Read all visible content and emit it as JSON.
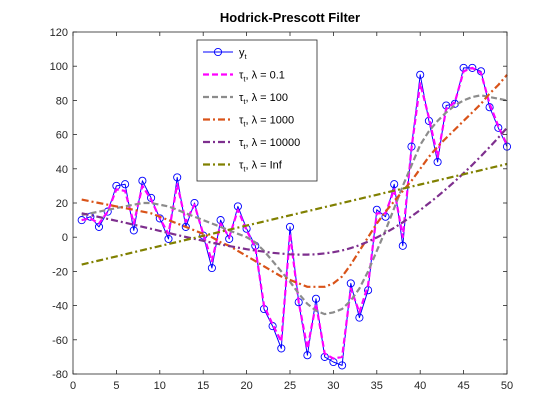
{
  "chart_data": {
    "type": "line",
    "title": "Hodrick-Prescott Filter",
    "xlabel": "",
    "ylabel": "",
    "xlim": [
      0,
      50
    ],
    "ylim": [
      -80,
      120
    ],
    "xticks": [
      0,
      5,
      10,
      15,
      20,
      25,
      30,
      35,
      40,
      45,
      50
    ],
    "yticks": [
      -80,
      -60,
      -40,
      -20,
      0,
      20,
      40,
      60,
      80,
      100,
      120
    ],
    "grid": false,
    "legend_position": "top-center",
    "x": [
      1,
      2,
      3,
      4,
      5,
      6,
      7,
      8,
      9,
      10,
      11,
      12,
      13,
      14,
      15,
      16,
      17,
      18,
      19,
      20,
      21,
      22,
      23,
      24,
      25,
      26,
      27,
      28,
      29,
      30,
      31,
      32,
      33,
      34,
      35,
      36,
      37,
      38,
      39,
      40,
      41,
      42,
      43,
      44,
      45,
      46,
      47,
      48,
      49,
      50
    ],
    "series": [
      {
        "legend": {
          "base": "y",
          "sub": "t",
          "rest": ""
        },
        "color": "#0000ff",
        "style": "solid-marker",
        "values": [
          10,
          12,
          6,
          15,
          30,
          31,
          4,
          33,
          23,
          11,
          -1,
          35,
          6,
          20,
          1,
          -18,
          10,
          -1,
          18,
          5,
          -5,
          -42,
          -52,
          -65,
          6,
          -38,
          -69,
          -36,
          -70,
          -73,
          -75,
          -27,
          -47,
          -31,
          16,
          12,
          31,
          -5,
          53,
          95,
          68,
          44,
          77,
          78,
          99,
          99,
          97,
          76,
          64,
          53
        ]
      },
      {
        "legend": {
          "base": "τ",
          "sub": "t",
          "rest": ", λ = 0.1"
        },
        "color": "#ff00ff",
        "style": "dash",
        "values": [
          10,
          11,
          8,
          15,
          28,
          27,
          8,
          30,
          22,
          11,
          2,
          31,
          9,
          19,
          2,
          -14,
          8,
          0,
          16,
          4,
          -6,
          -40,
          -51,
          -61,
          2,
          -38,
          -65,
          -39,
          -68,
          -71,
          -70,
          -30,
          -44,
          -28,
          14,
          14,
          28,
          0,
          52,
          90,
          70,
          47,
          75,
          79,
          97,
          99,
          96,
          78,
          65,
          54
        ]
      },
      {
        "legend": {
          "base": "τ",
          "sub": "t",
          "rest": ", λ = 100"
        },
        "color": "#8c8c8c",
        "style": "dash",
        "values": [
          13,
          14,
          15,
          16,
          17,
          18,
          19,
          20,
          20,
          19,
          18,
          16,
          14,
          12,
          10,
          8,
          6,
          4,
          2,
          0,
          -3,
          -8,
          -14,
          -20,
          -26,
          -33,
          -39,
          -43,
          -45,
          -44,
          -42,
          -37,
          -30,
          -20,
          -8,
          4,
          17,
          30,
          42,
          54,
          62,
          68,
          73,
          77,
          80,
          82,
          83,
          82,
          81,
          80
        ]
      },
      {
        "legend": {
          "base": "τ",
          "sub": "t",
          "rest": ", λ = 1000"
        },
        "color": "#d95319",
        "style": "dashdot",
        "values": [
          22,
          21,
          20,
          19,
          18,
          17,
          16,
          15,
          14,
          12,
          10,
          8,
          6,
          4,
          2,
          0,
          -3,
          -5,
          -8,
          -11,
          -14,
          -17,
          -20,
          -23,
          -25,
          -27,
          -29,
          -29,
          -29,
          -27,
          -23,
          -16,
          -8,
          0,
          8,
          15,
          21,
          27,
          33,
          40,
          47,
          53,
          58,
          63,
          68,
          73,
          78,
          84,
          89,
          95
        ]
      },
      {
        "legend": {
          "base": "τ",
          "sub": "t",
          "rest": ", λ = 10000"
        },
        "color": "#7e2f8e",
        "style": "dashdot",
        "values": [
          14,
          12.9,
          11.8,
          10.7,
          9.6,
          8.5,
          7.3,
          6.1,
          4.9,
          3.7,
          2.5,
          1.3,
          0.1,
          -1,
          -2.1,
          -3.2,
          -4.2,
          -5.2,
          -6.1,
          -7,
          -7.8,
          -8.5,
          -9.1,
          -9.6,
          -10,
          -10.2,
          -10.2,
          -10,
          -9.5,
          -8.8,
          -7.8,
          -6.4,
          -4.7,
          -2.6,
          -0.2,
          2.5,
          5.5,
          8.7,
          12.2,
          15.9,
          19.8,
          23.9,
          28.2,
          32.7,
          37.4,
          42.3,
          47.4,
          52.7,
          58.2,
          64
        ]
      },
      {
        "legend": {
          "base": "τ",
          "sub": "t",
          "rest": ", λ = Inf"
        },
        "color": "#808000",
        "style": "dashdot",
        "values": [
          -16,
          -14.8,
          -13.6,
          -12.4,
          -11.2,
          -10,
          -8.8,
          -7.6,
          -6.4,
          -5.2,
          -4,
          -2.8,
          -1.6,
          -0.4,
          0.8,
          2,
          3.2,
          4.4,
          5.6,
          6.8,
          8,
          9.2,
          10.4,
          11.6,
          12.8,
          14,
          15.2,
          16.4,
          17.6,
          18.8,
          20,
          21.2,
          22.4,
          23.6,
          24.8,
          26,
          27.2,
          28.4,
          29.6,
          30.8,
          32,
          33.2,
          34.4,
          35.6,
          36.8,
          38,
          39.2,
          40.4,
          41.6,
          42.8
        ]
      }
    ]
  }
}
